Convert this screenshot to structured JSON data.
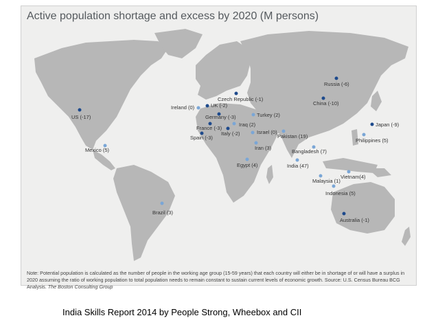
{
  "title": "Active population shortage and  excess by 2020 (M persons)",
  "colors": {
    "shortage": "#1e4a8c",
    "excess": "#7aa6d6",
    "land": "#b7b7b7",
    "background": "#efefee"
  },
  "countries": [
    {
      "key": "us",
      "label": "US (-17)"
    },
    {
      "key": "mexico",
      "label": "Mexico (5)"
    },
    {
      "key": "brazil",
      "label": "Brazil (3)"
    },
    {
      "key": "ireland",
      "label": "Ireland (0)"
    },
    {
      "key": "uk",
      "label": "UK (-2)"
    },
    {
      "key": "czech",
      "label": "Czech Republic (-1)"
    },
    {
      "key": "germany",
      "label": "Germany (-3)"
    },
    {
      "key": "france",
      "label": "France (-3)"
    },
    {
      "key": "spain",
      "label": "Spain (-3)"
    },
    {
      "key": "italy",
      "label": "Italy (-2)"
    },
    {
      "key": "iraq",
      "label": "Iraq (2)"
    },
    {
      "key": "israel",
      "label": "Israel (0)"
    },
    {
      "key": "turkey",
      "label": "Turkey (2)"
    },
    {
      "key": "pakistan",
      "label": "Pakistan (19)"
    },
    {
      "key": "iran",
      "label": "Iran (3)"
    },
    {
      "key": "egypt",
      "label": "Egypt (4)"
    },
    {
      "key": "india",
      "label": "India (47)"
    },
    {
      "key": "bangladesh",
      "label": "Bangladesh (7)"
    },
    {
      "key": "russia",
      "label": "Russia (-6)"
    },
    {
      "key": "china",
      "label": "China (-10)"
    },
    {
      "key": "japan",
      "label": "Japan (-9)"
    },
    {
      "key": "philippines",
      "label": "Philippines (5)"
    },
    {
      "key": "vietnam",
      "label": "Vietnam(4)"
    },
    {
      "key": "malaysia",
      "label": "Malaysia (1)"
    },
    {
      "key": "indonesia",
      "label": "Indonesia (5)"
    },
    {
      "key": "australia",
      "label": "Australia (-1)"
    }
  ],
  "note": {
    "text": "Note: Potential population is calculated as the number of people in the working age group (15-59 years) that each country will either be in shortage of or will have a surplus in 2020 assuming the ratio of working population to total population needs to remain constant to sustain current levels of economic growth. Source: U.S. Census Bureau BCG Analysis.",
    "source_italic": "The Boston Consulting Group"
  },
  "caption": "India Skills Report 2014 by People Strong, Wheebox and CII"
}
